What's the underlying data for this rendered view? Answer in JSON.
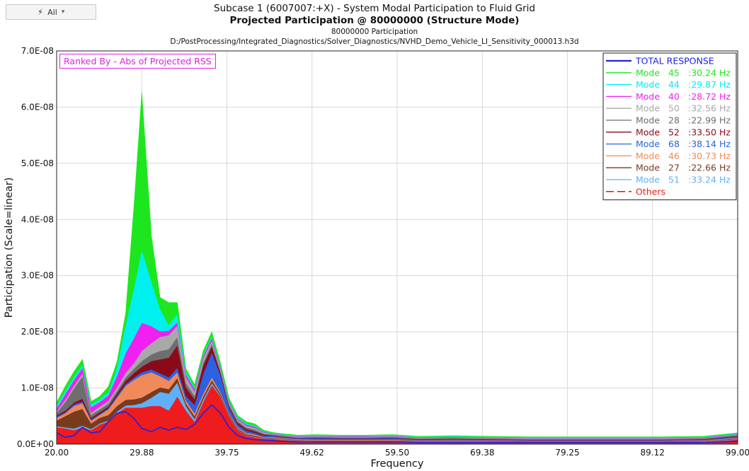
{
  "toolbar": {
    "filter_label": "All",
    "filter_icon": "lightning-icon"
  },
  "header": {
    "title": "Subcase 1 (6007007:+X) - System Modal Participation to Fluid Grid",
    "subtitle": "Projected Participation @ 80000000 (Structure Mode)",
    "line3": "80000000 Participation",
    "file_path": "D:/PostProcessing/Integrated_Diagnostics/Solver_Diagnostics/NVHD_Demo_Vehicle_LI_Sensitivity_000013.h3d"
  },
  "annotation": {
    "rank_label": "Ranked By - Abs of Projected RSS",
    "color": "#e020e0"
  },
  "chart_data": {
    "type": "area",
    "xlabel": "Frequency",
    "ylabel": "Participation (Scale=linear)",
    "xlim": [
      20,
      99
    ],
    "ylim": [
      0,
      7e-08
    ],
    "x_ticks": [
      "20.00",
      "29.88",
      "39.75",
      "49.62",
      "59.50",
      "69.38",
      "79.25",
      "89.12",
      "99.00"
    ],
    "y_ticks": [
      "0.0E+00",
      "1.0E-08",
      "2.0E-08",
      "3.0E-08",
      "4.0E-08",
      "5.0E-08",
      "6.0E-08",
      "7.0E-08"
    ],
    "grid": true,
    "legend_position": "top-right",
    "x": [
      20,
      21,
      22,
      23,
      24,
      25,
      26,
      27,
      28,
      29,
      29.88,
      31,
      32,
      33,
      34,
      35,
      36,
      37,
      38,
      39,
      40,
      41,
      42,
      43,
      44,
      45,
      46,
      48,
      50,
      53,
      56,
      59,
      62,
      66,
      70,
      75,
      80,
      85,
      90,
      95,
      99
    ],
    "stack_order_bottom_to_top": [
      "Others",
      "Mode 51",
      "Mode 27",
      "Mode 46",
      "Mode 68",
      "Mode 52",
      "Mode 28",
      "Mode 50",
      "Mode 40",
      "Mode 44",
      "Mode 45"
    ],
    "series": [
      {
        "name": "TOTAL RESPONSE",
        "label": "TOTAL RESPONSE",
        "mode": "",
        "freq": "",
        "color": "#2020e0",
        "style": "thick",
        "values": [
          2e-09,
          1.2e-09,
          1.5e-09,
          3e-09,
          2e-09,
          2.2e-09,
          4e-09,
          5.5e-09,
          5.8e-09,
          4.5e-09,
          2.8e-09,
          2.2e-09,
          3e-09,
          2.5e-09,
          3e-09,
          2.6e-09,
          3.5e-09,
          5.5e-09,
          7e-09,
          5.5e-09,
          3e-09,
          1.5e-09,
          1e-09,
          8e-10,
          7e-10,
          6e-10,
          5e-10,
          4e-10,
          4e-10,
          4e-10,
          4e-10,
          4e-10,
          3e-10,
          3e-10,
          3e-10,
          3e-10,
          3e-10,
          3e-10,
          3e-10,
          3e-10,
          5e-10
        ]
      },
      {
        "name": "Mode 45",
        "label": "Mode",
        "mode": "45",
        "freq": ":30.24 Hz",
        "color": "#1ee61e",
        "style": "line",
        "values": [
          5e-10,
          8e-10,
          1e-09,
          1e-09,
          5e-10,
          5e-10,
          1e-09,
          1e-09,
          2e-09,
          1.5e-08,
          2.8e-08,
          8e-09,
          2e-09,
          4e-09,
          2e-09,
          5e-10,
          5e-10,
          6e-10,
          8e-10,
          5e-10,
          4e-10,
          3e-10,
          3e-10,
          3e-10,
          2e-10,
          1e-10,
          1e-10,
          1e-10,
          1e-10,
          1e-10,
          1e-10,
          1e-10,
          1e-10,
          1e-10,
          1e-10,
          1e-10,
          1e-10,
          1e-10,
          1e-10,
          1e-10,
          1e-10
        ]
      },
      {
        "name": "Mode 44",
        "label": "Mode",
        "mode": "44",
        "freq": ":29.87 Hz",
        "color": "#00f0f0",
        "style": "line",
        "values": [
          5e-10,
          6e-10,
          5e-10,
          5e-10,
          5e-10,
          5e-10,
          5e-10,
          1.5e-09,
          5e-09,
          9e-09,
          1.3e-08,
          8e-09,
          4e-09,
          1e-09,
          1.5e-09,
          5e-10,
          3e-10,
          3e-10,
          3e-10,
          2e-10,
          2e-10,
          2e-10,
          2e-10,
          2e-10,
          1e-10,
          1e-10,
          1e-10,
          1e-10,
          1e-10,
          1e-10,
          1e-10,
          1e-10,
          1e-10,
          1e-10,
          1e-10,
          1e-10,
          1e-10,
          1e-10,
          1e-10,
          1e-10,
          1e-10
        ]
      },
      {
        "name": "Mode 40",
        "label": "Mode",
        "mode": "40",
        "freq": ":28.72 Hz",
        "color": "#f020f0",
        "style": "line",
        "values": [
          5e-10,
          1e-09,
          1e-09,
          1e-09,
          1e-09,
          8e-10,
          1e-09,
          2e-09,
          3.5e-09,
          4.5e-09,
          5e-09,
          3e-09,
          1e-09,
          8e-10,
          6e-10,
          5e-10,
          4e-10,
          4e-10,
          4e-10,
          3e-10,
          2e-10,
          2e-10,
          2e-10,
          2e-10,
          1e-10,
          1e-10,
          1e-10,
          1e-10,
          1e-10,
          1e-10,
          1e-10,
          1e-10,
          1e-10,
          1e-10,
          1e-10,
          1e-10,
          1e-10,
          1e-10,
          1e-10,
          1e-10,
          1e-10
        ]
      },
      {
        "name": "Mode 50",
        "label": "Mode",
        "mode": "50",
        "freq": ":32.56 Hz",
        "color": "#a8a8a8",
        "style": "line",
        "values": [
          3e-10,
          4e-10,
          5e-10,
          5e-10,
          4e-10,
          5e-10,
          5e-10,
          6e-10,
          8e-10,
          1e-09,
          1.8e-09,
          2e-09,
          2.5e-09,
          2.5e-09,
          2e-09,
          1e-09,
          8e-10,
          8e-10,
          6e-10,
          4e-10,
          3e-10,
          3e-10,
          3e-10,
          3e-10,
          2e-10,
          1e-10,
          1e-10,
          1e-10,
          1e-10,
          1e-10,
          1e-10,
          1e-10,
          1e-10,
          1e-10,
          1e-10,
          1e-10,
          1e-10,
          1e-10,
          1e-10,
          1e-10,
          1e-10
        ]
      },
      {
        "name": "Mode 28",
        "label": "Mode",
        "mode": "28",
        "freq": ":22.99 Hz",
        "color": "#6e6e6e",
        "style": "line",
        "values": [
          5e-10,
          1.5e-09,
          2.5e-09,
          4e-09,
          5e-10,
          5e-10,
          5e-10,
          5e-10,
          6e-10,
          8e-10,
          1e-09,
          1.2e-09,
          1.5e-09,
          1.5e-09,
          1.5e-09,
          8e-10,
          6e-10,
          5e-10,
          5e-10,
          3e-10,
          3e-10,
          3e-10,
          3e-10,
          3e-10,
          2e-10,
          1e-10,
          1e-10,
          1e-10,
          1e-10,
          1e-10,
          1e-10,
          1e-10,
          1e-10,
          1e-10,
          1e-10,
          1e-10,
          1e-10,
          1e-10,
          1e-10,
          1e-10,
          1e-10
        ]
      },
      {
        "name": "Mode 52",
        "label": "Mode",
        "mode": "52",
        "freq": ":33.50 Hz",
        "color": "#8b0a1a",
        "style": "line",
        "values": [
          2e-10,
          3e-10,
          3e-10,
          5e-10,
          3e-10,
          3e-10,
          3e-10,
          4e-10,
          6e-10,
          8e-10,
          1e-09,
          1.5e-09,
          2.5e-09,
          3.5e-09,
          4e-09,
          1.5e-09,
          1e-09,
          1.5e-09,
          1e-09,
          5e-10,
          3e-10,
          3e-10,
          3e-10,
          3e-10,
          2e-10,
          1e-10,
          1e-10,
          1e-10,
          1e-10,
          1e-10,
          1e-10,
          1e-10,
          1e-10,
          1e-10,
          1e-10,
          1e-10,
          1e-10,
          1e-10,
          1e-10,
          1e-10,
          1e-10
        ]
      },
      {
        "name": "Mode 68",
        "label": "Mode",
        "mode": "68",
        "freq": ":38.14 Hz",
        "color": "#2a62e2",
        "style": "line",
        "values": [
          2e-10,
          2e-10,
          3e-10,
          3e-10,
          2e-10,
          2e-10,
          2e-10,
          3e-10,
          3e-10,
          4e-10,
          5e-10,
          5e-10,
          5e-10,
          6e-10,
          8e-10,
          8e-10,
          1.5e-09,
          3.5e-09,
          4.5e-09,
          3e-09,
          1e-09,
          5e-10,
          4e-10,
          3e-10,
          2e-10,
          2e-10,
          2e-10,
          1e-10,
          3e-10,
          2e-10,
          2e-10,
          3e-10,
          1e-10,
          2e-10,
          1e-10,
          1e-10,
          1e-10,
          1e-10,
          1e-10,
          1e-10,
          3e-10
        ]
      },
      {
        "name": "Mode 46",
        "label": "Mode",
        "mode": "46",
        "freq": ":30.73 Hz",
        "color": "#f08a5a",
        "style": "line",
        "values": [
          5e-10,
          5e-10,
          1e-09,
          1e-09,
          5e-10,
          5e-10,
          1e-09,
          1.5e-09,
          2.5e-09,
          3.5e-09,
          4e-09,
          3.5e-09,
          2e-09,
          1.5e-09,
          1e-09,
          5e-10,
          5e-10,
          5e-10,
          5e-10,
          3e-10,
          2e-10,
          2e-10,
          2e-10,
          2e-10,
          1e-10,
          1e-10,
          1e-10,
          1e-10,
          1e-10,
          1e-10,
          1e-10,
          1e-10,
          1e-10,
          1e-10,
          1e-10,
          1e-10,
          1e-10,
          1e-10,
          1e-10,
          1e-10,
          1e-10
        ]
      },
      {
        "name": "Mode 27",
        "label": "Mode",
        "mode": "27",
        "freq": ":22.66 Hz",
        "color": "#7a3a1e",
        "style": "line",
        "values": [
          1e-09,
          2e-09,
          3e-09,
          3e-09,
          1e-09,
          1e-09,
          1e-09,
          1e-09,
          1e-09,
          1e-09,
          1e-09,
          1e-09,
          8e-10,
          8e-10,
          8e-10,
          5e-10,
          5e-10,
          5e-10,
          5e-10,
          3e-10,
          2e-10,
          2e-10,
          2e-10,
          2e-10,
          1e-10,
          1e-10,
          1e-10,
          1e-10,
          1e-10,
          1e-10,
          1e-10,
          1e-10,
          1e-10,
          1e-10,
          1e-10,
          1e-10,
          1e-10,
          1e-10,
          1e-10,
          1e-10,
          1e-10
        ]
      },
      {
        "name": "Mode 51",
        "label": "Mode",
        "mode": "51",
        "freq": ":33.24 Hz",
        "color": "#5fb0f8",
        "style": "line",
        "values": [
          2e-10,
          2e-10,
          3e-10,
          3e-10,
          2e-10,
          2e-10,
          2e-10,
          3e-10,
          4e-10,
          5e-10,
          8e-10,
          1.5e-09,
          2.5e-09,
          3e-09,
          2.5e-09,
          8e-10,
          5e-10,
          5e-10,
          4e-10,
          2e-10,
          1e-10,
          1e-10,
          1e-10,
          1e-10,
          1e-10,
          1e-10,
          1e-10,
          1e-10,
          1e-10,
          1e-10,
          1e-10,
          1e-10,
          1e-10,
          1e-10,
          1e-10,
          1e-10,
          1e-10,
          1e-10,
          1e-10,
          1e-10,
          1e-10
        ]
      },
      {
        "name": "Others",
        "label": "Others",
        "mode": "",
        "freq": "",
        "color": "#ee1c1c",
        "style": "dashed",
        "values": [
          3e-09,
          2.8e-09,
          2.5e-09,
          3e-09,
          2.5e-09,
          3.5e-09,
          4e-09,
          5.5e-09,
          6.5e-09,
          6.5e-09,
          6.5e-09,
          6.8e-09,
          6.8e-09,
          6e-09,
          8.5e-09,
          6e-09,
          4e-09,
          7.5e-09,
          1.05e-08,
          8.5e-09,
          5e-09,
          2.5e-09,
          1.5e-09,
          1.2e-09,
          1e-09,
          1e-09,
          8e-10,
          6e-10,
          5e-10,
          5e-10,
          5e-10,
          5e-10,
          4e-10,
          4e-10,
          4e-10,
          3e-10,
          3e-10,
          3e-10,
          3e-10,
          4e-10,
          8e-10
        ]
      }
    ]
  }
}
